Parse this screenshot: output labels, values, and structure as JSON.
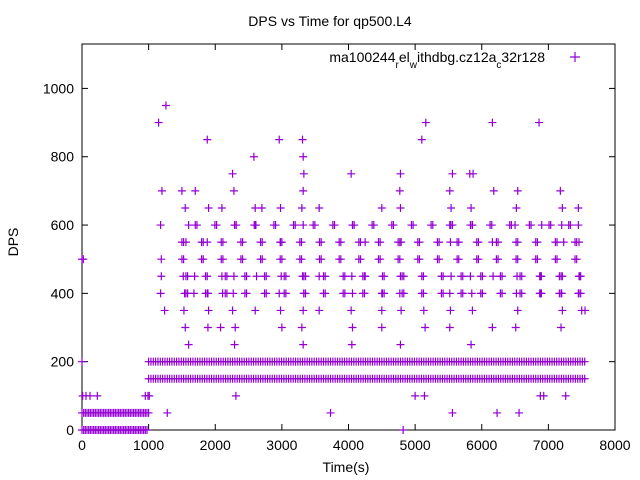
{
  "chart_data": {
    "type": "scatter",
    "title": "DPS vs Time for qp500.L4",
    "xlabel": "Time(s)",
    "ylabel": "DPS",
    "xlim": [
      0,
      8000
    ],
    "ylim": [
      0,
      1130
    ],
    "xticks": [
      0,
      1000,
      2000,
      3000,
      4000,
      5000,
      6000,
      7000,
      8000
    ],
    "yticks": [
      0,
      200,
      400,
      600,
      800,
      1000
    ],
    "grid": false,
    "legend_position": "top-right",
    "marker": "plus",
    "series": [
      {
        "name": "ma100244_rel_withdbg.cz12a_c32r128",
        "legend_parts": [
          {
            "text": "ma100244",
            "shift": "base"
          },
          {
            "text": "r",
            "shift": "sub"
          },
          {
            "text": "el",
            "shift": "base"
          },
          {
            "text": "w",
            "shift": "sub"
          },
          {
            "text": "ithdbg.cz12a",
            "shift": "base"
          },
          {
            "text": "c",
            "shift": "sub"
          },
          {
            "text": "32r128",
            "shift": "base"
          }
        ],
        "color": "#9400d3",
        "bands": [
          {
            "y": 0,
            "x_start": 0,
            "x_end": 990,
            "step": 25
          },
          {
            "y": 50,
            "x_start": 0,
            "x_end": 1000,
            "step": 25
          },
          {
            "y": 150,
            "x_start": 1000,
            "x_end": 7550,
            "step": 35
          },
          {
            "y": 200,
            "x_start": 1000,
            "x_end": 7550,
            "step": 35
          }
        ],
        "points": [
          {
            "x": 0,
            "y": 500
          },
          {
            "x": 20,
            "y": 500
          },
          {
            "x": 0,
            "y": 200
          },
          {
            "x": 10,
            "y": 100
          },
          {
            "x": 60,
            "y": 100
          },
          {
            "x": 120,
            "y": 100
          },
          {
            "x": 230,
            "y": 100
          },
          {
            "x": 950,
            "y": 100
          },
          {
            "x": 990,
            "y": 100
          },
          {
            "x": 1010,
            "y": 100
          },
          {
            "x": 1150,
            "y": 900
          },
          {
            "x": 1260,
            "y": 950
          },
          {
            "x": 1180,
            "y": 600
          },
          {
            "x": 1200,
            "y": 700
          },
          {
            "x": 1190,
            "y": 500
          },
          {
            "x": 1190,
            "y": 450
          },
          {
            "x": 1180,
            "y": 400
          },
          {
            "x": 1240,
            "y": 350
          },
          {
            "x": 1280,
            "y": 50
          },
          {
            "x": 1500,
            "y": 700
          },
          {
            "x": 1550,
            "y": 650
          },
          {
            "x": 1600,
            "y": 600
          },
          {
            "x": 1560,
            "y": 550
          },
          {
            "x": 1520,
            "y": 450
          },
          {
            "x": 1540,
            "y": 400
          },
          {
            "x": 1530,
            "y": 350
          },
          {
            "x": 1550,
            "y": 300
          },
          {
            "x": 1600,
            "y": 250
          },
          {
            "x": 1700,
            "y": 700
          },
          {
            "x": 1690,
            "y": 450
          },
          {
            "x": 1680,
            "y": 400
          },
          {
            "x": 1880,
            "y": 850
          },
          {
            "x": 1880,
            "y": 550
          },
          {
            "x": 1890,
            "y": 400
          },
          {
            "x": 1900,
            "y": 350
          },
          {
            "x": 1890,
            "y": 300
          },
          {
            "x": 1900,
            "y": 650
          },
          {
            "x": 2100,
            "y": 650
          },
          {
            "x": 2100,
            "y": 450
          },
          {
            "x": 2110,
            "y": 400
          },
          {
            "x": 2080,
            "y": 300
          },
          {
            "x": 2260,
            "y": 750
          },
          {
            "x": 2280,
            "y": 700
          },
          {
            "x": 2290,
            "y": 600
          },
          {
            "x": 2280,
            "y": 450
          },
          {
            "x": 2270,
            "y": 400
          },
          {
            "x": 2260,
            "y": 350
          },
          {
            "x": 2300,
            "y": 300
          },
          {
            "x": 2290,
            "y": 250
          },
          {
            "x": 2310,
            "y": 100
          },
          {
            "x": 2580,
            "y": 800
          },
          {
            "x": 2600,
            "y": 650
          },
          {
            "x": 2600,
            "y": 600
          },
          {
            "x": 2620,
            "y": 450
          },
          {
            "x": 2600,
            "y": 350
          },
          {
            "x": 2700,
            "y": 650
          },
          {
            "x": 2960,
            "y": 850
          },
          {
            "x": 2980,
            "y": 650
          },
          {
            "x": 2980,
            "y": 550
          },
          {
            "x": 2990,
            "y": 450
          },
          {
            "x": 2960,
            "y": 400
          },
          {
            "x": 2980,
            "y": 350
          },
          {
            "x": 3000,
            "y": 300
          },
          {
            "x": 3310,
            "y": 850
          },
          {
            "x": 3320,
            "y": 800
          },
          {
            "x": 3330,
            "y": 750
          },
          {
            "x": 3320,
            "y": 700
          },
          {
            "x": 3300,
            "y": 650
          },
          {
            "x": 3320,
            "y": 600
          },
          {
            "x": 3310,
            "y": 450
          },
          {
            "x": 3330,
            "y": 400
          },
          {
            "x": 3320,
            "y": 350
          },
          {
            "x": 3300,
            "y": 300
          },
          {
            "x": 3320,
            "y": 250
          },
          {
            "x": 3560,
            "y": 650
          },
          {
            "x": 3560,
            "y": 450
          },
          {
            "x": 3560,
            "y": 350
          },
          {
            "x": 3730,
            "y": 50
          },
          {
            "x": 4040,
            "y": 750
          },
          {
            "x": 4060,
            "y": 600
          },
          {
            "x": 4050,
            "y": 450
          },
          {
            "x": 4060,
            "y": 400
          },
          {
            "x": 4040,
            "y": 350
          },
          {
            "x": 4060,
            "y": 300
          },
          {
            "x": 4050,
            "y": 250
          },
          {
            "x": 4250,
            "y": 450
          },
          {
            "x": 4250,
            "y": 550
          },
          {
            "x": 4500,
            "y": 650
          },
          {
            "x": 4500,
            "y": 400
          },
          {
            "x": 4500,
            "y": 350
          },
          {
            "x": 4500,
            "y": 300
          },
          {
            "x": 4780,
            "y": 750
          },
          {
            "x": 4770,
            "y": 700
          },
          {
            "x": 4780,
            "y": 650
          },
          {
            "x": 4790,
            "y": 550
          },
          {
            "x": 4780,
            "y": 450
          },
          {
            "x": 4770,
            "y": 400
          },
          {
            "x": 4790,
            "y": 350
          },
          {
            "x": 4780,
            "y": 250
          },
          {
            "x": 4820,
            "y": 0
          },
          {
            "x": 5100,
            "y": 850
          },
          {
            "x": 5160,
            "y": 900
          },
          {
            "x": 5130,
            "y": 350
          },
          {
            "x": 5150,
            "y": 300
          },
          {
            "x": 5000,
            "y": 100
          },
          {
            "x": 5140,
            "y": 100
          },
          {
            "x": 5520,
            "y": 700
          },
          {
            "x": 5540,
            "y": 650
          },
          {
            "x": 5520,
            "y": 600
          },
          {
            "x": 5560,
            "y": 750
          },
          {
            "x": 5530,
            "y": 550
          },
          {
            "x": 5540,
            "y": 450
          },
          {
            "x": 5520,
            "y": 400
          },
          {
            "x": 5530,
            "y": 350
          },
          {
            "x": 5520,
            "y": 300
          },
          {
            "x": 5560,
            "y": 50
          },
          {
            "x": 5820,
            "y": 750
          },
          {
            "x": 5870,
            "y": 750
          },
          {
            "x": 5840,
            "y": 650
          },
          {
            "x": 5860,
            "y": 600
          },
          {
            "x": 5830,
            "y": 450
          },
          {
            "x": 5850,
            "y": 400
          },
          {
            "x": 5860,
            "y": 350
          },
          {
            "x": 5840,
            "y": 250
          },
          {
            "x": 6160,
            "y": 900
          },
          {
            "x": 6180,
            "y": 700
          },
          {
            "x": 6160,
            "y": 550
          },
          {
            "x": 6170,
            "y": 450
          },
          {
            "x": 6160,
            "y": 300
          },
          {
            "x": 6230,
            "y": 50
          },
          {
            "x": 6500,
            "y": 600
          },
          {
            "x": 6520,
            "y": 650
          },
          {
            "x": 6540,
            "y": 700
          },
          {
            "x": 6530,
            "y": 450
          },
          {
            "x": 6520,
            "y": 400
          },
          {
            "x": 6540,
            "y": 350
          },
          {
            "x": 6510,
            "y": 300
          },
          {
            "x": 6560,
            "y": 50
          },
          {
            "x": 6860,
            "y": 900
          },
          {
            "x": 6900,
            "y": 600
          },
          {
            "x": 6880,
            "y": 450
          },
          {
            "x": 6880,
            "y": 400
          },
          {
            "x": 6880,
            "y": 100
          },
          {
            "x": 6930,
            "y": 100
          },
          {
            "x": 7180,
            "y": 700
          },
          {
            "x": 7210,
            "y": 650
          },
          {
            "x": 7200,
            "y": 600
          },
          {
            "x": 7230,
            "y": 550
          },
          {
            "x": 7210,
            "y": 450
          },
          {
            "x": 7200,
            "y": 400
          },
          {
            "x": 7210,
            "y": 350
          },
          {
            "x": 7190,
            "y": 300
          },
          {
            "x": 7260,
            "y": 100
          },
          {
            "x": 7450,
            "y": 650
          },
          {
            "x": 7450,
            "y": 600
          },
          {
            "x": 7460,
            "y": 550
          },
          {
            "x": 7470,
            "y": 450
          },
          {
            "x": 7450,
            "y": 400
          },
          {
            "x": 7500,
            "y": 350
          },
          {
            "x": 7550,
            "y": 350
          }
        ],
        "verticals": [
          {
            "x_start": 1500,
            "x_end": 7550,
            "step": 295,
            "levels": [
              500,
              550
            ]
          },
          {
            "x_start": 1560,
            "x_end": 7550,
            "step": 295,
            "levels": [
              450,
              400
            ]
          },
          {
            "x_start": 1700,
            "x_end": 7550,
            "step": 295,
            "levels": [
              600
            ]
          }
        ]
      }
    ]
  }
}
